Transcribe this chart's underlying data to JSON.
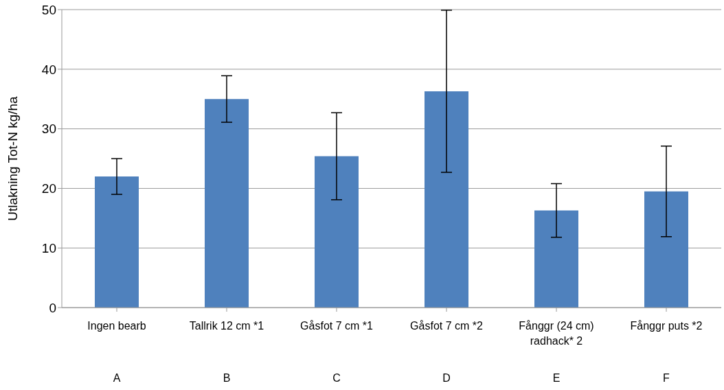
{
  "chart_data": {
    "type": "bar",
    "ylabel": "Utlakning Tot-N kg/ha",
    "categories": [
      "Ingen bearb",
      "Tallrik 12 cm *1",
      "Gåsfot 7 cm *1",
      "Gåsfot 7 cm *2",
      "Fånggr (24 cm) radhack* 2",
      "Fånggr puts *2"
    ],
    "values": [
      22.0,
      35.0,
      25.4,
      36.3,
      16.3,
      19.5
    ],
    "errors": [
      3.0,
      3.9,
      7.3,
      13.6,
      4.5,
      7.6
    ],
    "color": "#4f81bd",
    "ylim": [
      0,
      50
    ],
    "yticks": [
      0,
      10,
      20,
      30,
      40,
      50
    ],
    "grid": "y",
    "legend": false,
    "annotations": [
      "A",
      "B",
      "C",
      "D",
      "E",
      "F"
    ]
  }
}
